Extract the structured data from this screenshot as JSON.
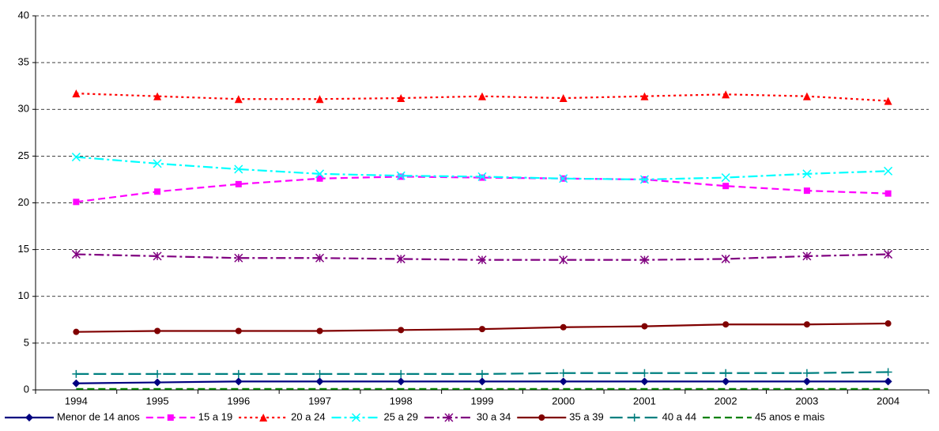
{
  "chart_data": {
    "type": "line",
    "categories": [
      "1994",
      "1995",
      "1996",
      "1997",
      "1998",
      "1999",
      "2000",
      "2001",
      "2002",
      "2003",
      "2004"
    ],
    "ylim": [
      0,
      40
    ],
    "yticks": [
      0,
      5,
      10,
      15,
      20,
      25,
      30,
      35,
      40
    ],
    "grid": true,
    "legend": "bottom",
    "series": [
      {
        "name": "Menor de 14 anos",
        "color": "#000080",
        "dash": "solid",
        "marker": "diamond",
        "values": [
          0.7,
          0.8,
          0.9,
          0.9,
          0.9,
          0.9,
          0.9,
          0.9,
          0.9,
          0.9,
          0.9
        ]
      },
      {
        "name": "15 a 19",
        "color": "#ff00ff",
        "dash": "dash",
        "marker": "square",
        "values": [
          20.1,
          21.2,
          22.0,
          22.6,
          22.8,
          22.7,
          22.6,
          22.5,
          21.8,
          21.3,
          21.0
        ]
      },
      {
        "name": "20 a 24",
        "color": "#ff0000",
        "dash": "dot",
        "marker": "triangle",
        "values": [
          31.7,
          31.4,
          31.1,
          31.1,
          31.2,
          31.4,
          31.2,
          31.4,
          31.6,
          31.4,
          30.9
        ]
      },
      {
        "name": "25 a 29",
        "color": "#00ffff",
        "dash": "dashdot",
        "marker": "x",
        "values": [
          24.9,
          24.2,
          23.6,
          23.1,
          22.9,
          22.8,
          22.6,
          22.5,
          22.7,
          23.1,
          23.4
        ]
      },
      {
        "name": "30 a 34",
        "color": "#800080",
        "dash": "dashdot",
        "marker": "star",
        "values": [
          14.5,
          14.3,
          14.1,
          14.1,
          14.0,
          13.9,
          13.9,
          13.9,
          14.0,
          14.3,
          14.5
        ]
      },
      {
        "name": "35 a 39",
        "color": "#800000",
        "dash": "solid",
        "marker": "circle",
        "values": [
          6.2,
          6.3,
          6.3,
          6.3,
          6.4,
          6.5,
          6.7,
          6.8,
          7.0,
          7.0,
          7.1
        ]
      },
      {
        "name": "40 a 44",
        "color": "#008080",
        "dash": "longdash",
        "marker": "plus",
        "values": [
          1.7,
          1.7,
          1.7,
          1.7,
          1.7,
          1.7,
          1.8,
          1.8,
          1.8,
          1.8,
          1.9
        ]
      },
      {
        "name": "45 anos e mais",
        "color": "#008000",
        "dash": "dash",
        "marker": "none",
        "values": [
          0.1,
          0.1,
          0.1,
          0.1,
          0.1,
          0.1,
          0.1,
          0.1,
          0.1,
          0.1,
          0.1
        ]
      }
    ]
  }
}
